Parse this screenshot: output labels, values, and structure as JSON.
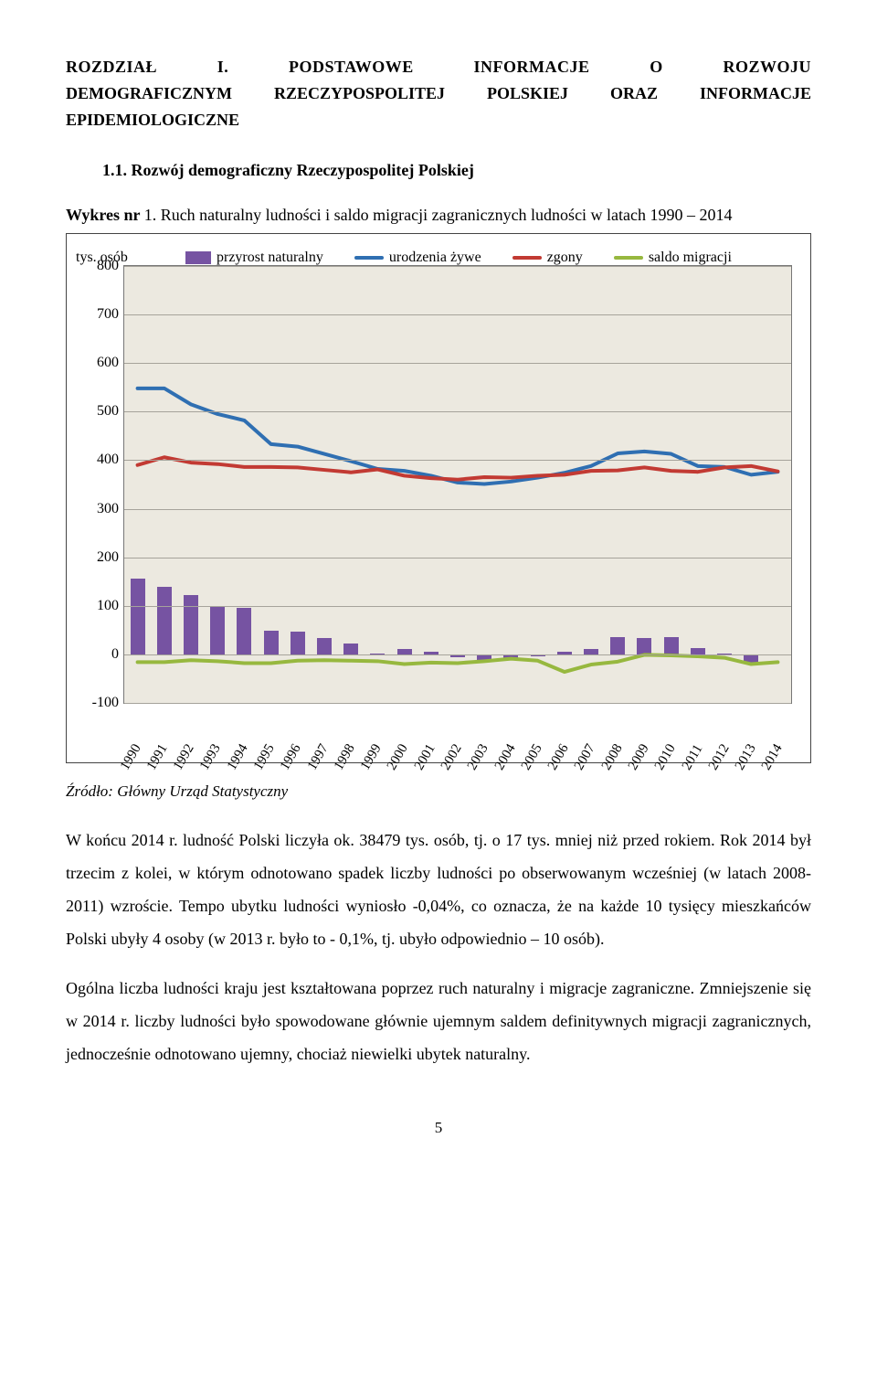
{
  "chapter": {
    "line1": "ROZDZIAŁ I. PODSTAWOWE INFORMACJE O ROZWOJU",
    "line2": "DEMOGRAFICZNYM RZECZYPOSPOLITEJ POLSKIEJ ORAZ INFORMACJE",
    "line3": "EPIDEMIOLOGICZNE"
  },
  "section_title": "1.1.  Rozwój demograficzny Rzeczypospolitej Polskiej",
  "figure_label_prefix": "Wykres nr ",
  "figure_number": "1.",
  "figure_caption": "Ruch naturalny ludności i saldo migracji zagranicznych ludności w latach 1990 – 2014",
  "chart": {
    "ylabel": "tys. osób",
    "ylim": [
      -100,
      800
    ],
    "ytick_step": 100,
    "background_color": "#ece9e0",
    "grid_color": "#a6a39b",
    "years": [
      "1990",
      "1991",
      "1992",
      "1993",
      "1994",
      "1995",
      "1996",
      "1997",
      "1998",
      "1999",
      "2000",
      "2001",
      "2002",
      "2003",
      "2004",
      "2005",
      "2006",
      "2007",
      "2008",
      "2009",
      "2010",
      "2011",
      "2012",
      "2013",
      "2014"
    ],
    "legend": [
      {
        "label": "przyrost naturalny",
        "type": "bar",
        "color": "#7653a2"
      },
      {
        "label": "urodzenia żywe",
        "type": "line",
        "color": "#2f6fb2"
      },
      {
        "label": "zgony",
        "type": "line",
        "color": "#c23a33"
      },
      {
        "label": "saldo migracji",
        "type": "line",
        "color": "#97b83f"
      }
    ],
    "series": {
      "przyrost_naturalny": [
        157,
        140,
        122,
        100,
        95,
        48,
        46,
        33,
        22,
        2,
        11,
        6,
        -6,
        -14,
        -7,
        -4,
        5,
        11,
        35,
        33,
        35,
        13,
        2,
        -18,
        -2
      ],
      "urodzenia_zywe": [
        548,
        548,
        515,
        495,
        482,
        433,
        428,
        413,
        398,
        382,
        378,
        368,
        354,
        351,
        356,
        364,
        374,
        388,
        414,
        418,
        413,
        388,
        386,
        370,
        376
      ],
      "zgony": [
        390,
        406,
        395,
        392,
        386,
        386,
        385,
        380,
        375,
        381,
        368,
        363,
        360,
        365,
        364,
        368,
        370,
        378,
        379,
        385,
        378,
        376,
        385,
        388,
        377
      ],
      "saldo_migracji": [
        -16,
        -16,
        -12,
        -14,
        -18,
        -18,
        -13,
        -12,
        -13,
        -14,
        -20,
        -17,
        -18,
        -14,
        -9,
        -13,
        -36,
        -21,
        -15,
        -1,
        -2,
        -4,
        -7,
        -20,
        -16
      ]
    },
    "bar_width_ratio": 0.55,
    "line_width": 4
  },
  "source": "Źródło: Główny Urząd Statystyczny",
  "paragraph1": "W końcu 2014 r. ludność Polski liczyła ok. 38479 tys. osób, tj. o 17 tys. mniej niż przed rokiem. Rok 2014 był trzecim z kolei, w którym odnotowano spadek liczby ludności po obserwowanym wcześniej (w latach 2008-2011) wzroście. Tempo ubytku ludności wyniosło -0,04%, co oznacza, że na każde 10 tysięcy mieszkańców Polski ubyły 4 osoby (w 2013 r. było to - 0,1%, tj. ubyło odpowiednio – 10 osób).",
  "paragraph2": "Ogólna liczba ludności kraju jest kształtowana poprzez ruch naturalny i migracje zagraniczne. Zmniejszenie się w 2014 r. liczby ludności było spowodowane głównie ujemnym saldem definitywnych migracji zagranicznych, jednocześnie odnotowano ujemny, chociaż niewielki ubytek naturalny.",
  "page_number": "5"
}
